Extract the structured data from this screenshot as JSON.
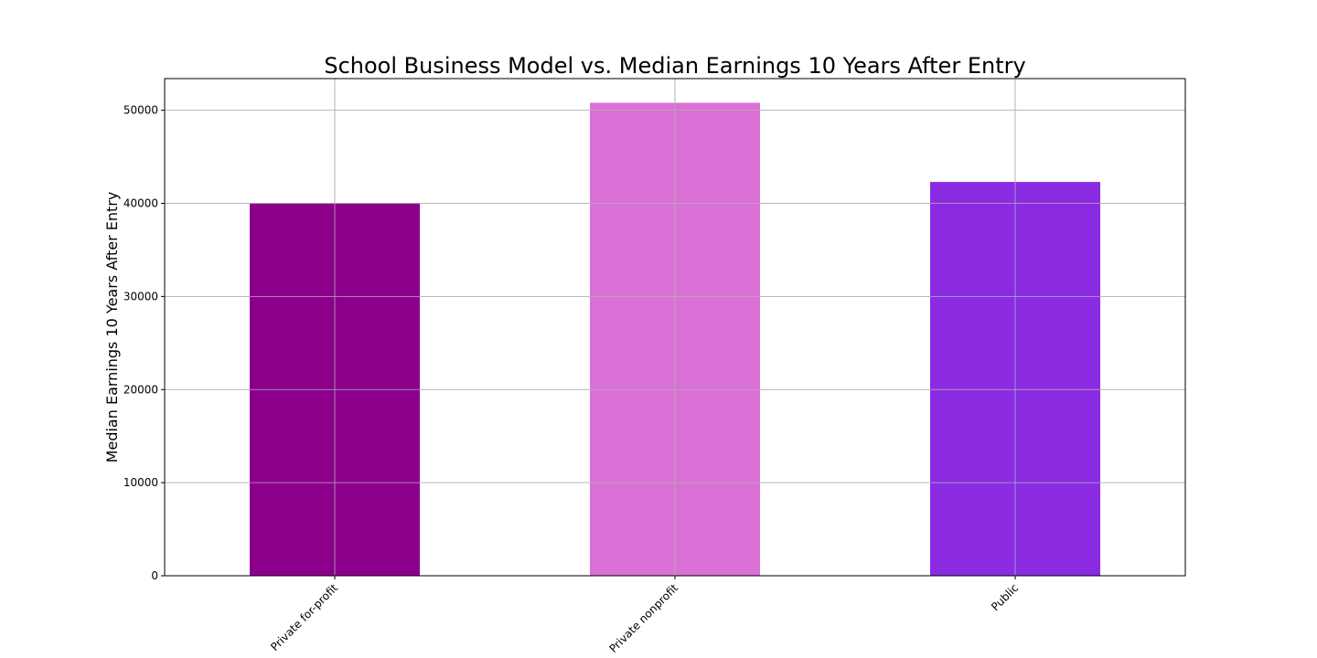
{
  "chart_data": {
    "type": "bar",
    "title": "School Business Model vs. Median Earnings 10 Years After Entry",
    "xlabel": "",
    "ylabel": "Median Earnings 10 Years After Entry",
    "categories": [
      "Private for-profit",
      "Private nonprofit",
      "Public"
    ],
    "values": [
      40000,
      50800,
      42300
    ],
    "colors": [
      "#8b008b",
      "#da70d6",
      "#8a2be2"
    ],
    "ylim": [
      0,
      53400
    ],
    "yticks": [
      0,
      10000,
      20000,
      30000,
      40000,
      50000
    ],
    "grid": true,
    "legend": "none"
  }
}
